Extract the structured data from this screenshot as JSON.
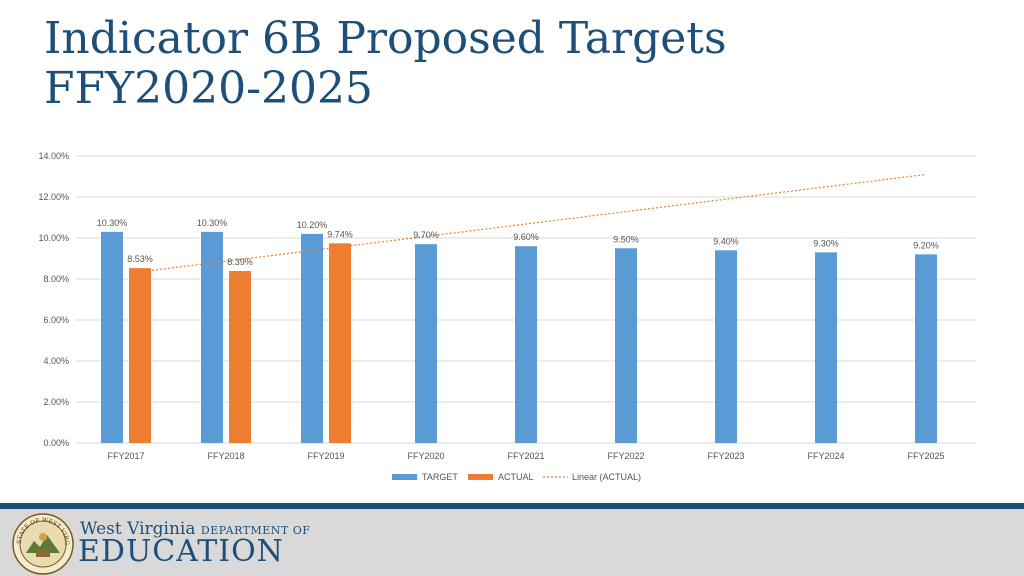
{
  "slide": {
    "title_line1": "Indicator 6B Proposed Targets",
    "title_line2": "FFY2020-2025"
  },
  "footer": {
    "org_name": "West Virginia",
    "dept_label": "DEPARTMENT OF",
    "edu_label": "EDUCATION",
    "seal_ring_text": "STATE OF WEST VIRGINIA"
  },
  "colors": {
    "target": "#5b9bd5",
    "actual": "#ed7d31",
    "trendline": "#ed7d31",
    "brand": "#1d4f78"
  },
  "chart_data": {
    "type": "bar",
    "categories": [
      "FFY2017",
      "FFY2018",
      "FFY2019",
      "FFY2020",
      "FFY2021",
      "FFY2022",
      "FFY2023",
      "FFY2024",
      "FFY2025"
    ],
    "series": [
      {
        "name": "TARGET",
        "values": [
          10.3,
          10.3,
          10.2,
          9.7,
          9.6,
          9.5,
          9.4,
          9.3,
          9.2
        ],
        "labels": [
          "10.30%",
          "10.30%",
          "10.20%",
          "9.70%",
          "9.60%",
          "9.50%",
          "9.40%",
          "9.30%",
          "9.20%"
        ]
      },
      {
        "name": "ACTUAL",
        "values": [
          8.53,
          8.39,
          9.74,
          null,
          null,
          null,
          null,
          null,
          null
        ],
        "labels": [
          "8.53%",
          "8.39%",
          "9.74%",
          "",
          "",
          "",
          "",
          "",
          ""
        ]
      }
    ],
    "trendline": {
      "name": "Linear (ACTUAL)",
      "start": 8.35,
      "end": 13.1
    },
    "yticks": [
      "0.00%",
      "2.00%",
      "4.00%",
      "6.00%",
      "8.00%",
      "10.00%",
      "12.00%",
      "14.00%"
    ],
    "ylim": [
      0,
      14
    ],
    "grid": true,
    "legend_position": "bottom"
  }
}
